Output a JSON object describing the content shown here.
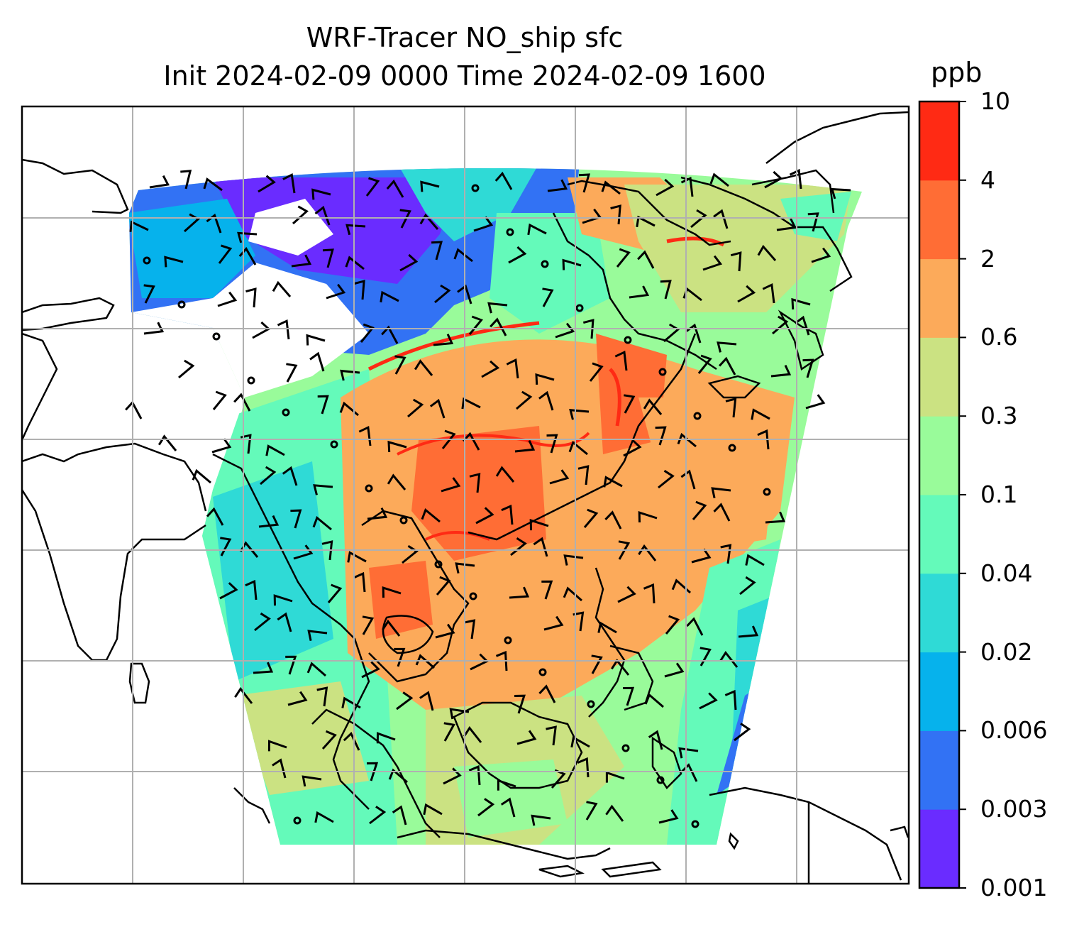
{
  "title": {
    "line1": "WRF-Tracer NO_ship sfc",
    "line2": "Init 2024-02-09 0000 Time 2024-02-09 1600"
  },
  "colorbar": {
    "unit": "ppb",
    "levels": [
      "0.001",
      "0.003",
      "0.006",
      "0.02",
      "0.04",
      "0.1",
      "0.3",
      "0.6",
      "2",
      "4",
      "10"
    ],
    "colors": [
      "#6a2cff",
      "#3272f4",
      "#06b2ec",
      "#2fdad6",
      "#64faba",
      "#99fb9a",
      "#cbe282",
      "#fcaa5a",
      "#ff6d35",
      "#ff2a14"
    ]
  }
}
